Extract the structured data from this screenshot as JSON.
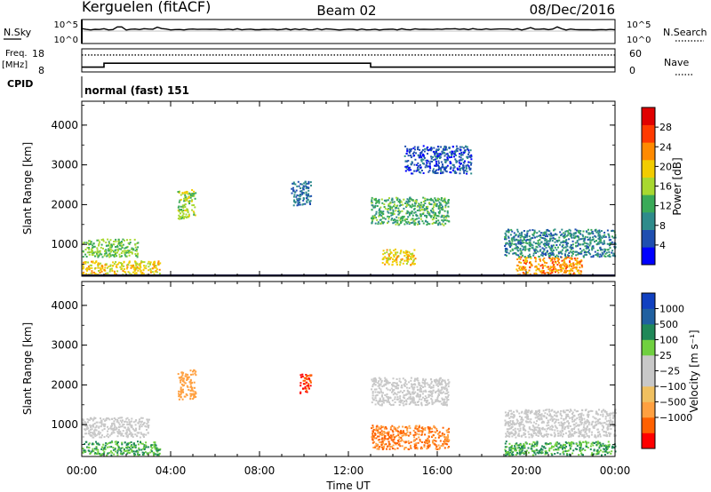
{
  "header": {
    "station": "Kerguelen (fitACF)",
    "beam": "Beam 02",
    "date": "08/Dec/2016"
  },
  "noise_panel": {
    "left_label": "N.Sky",
    "right_label": "N.Search",
    "left_ticks": [
      "10^5",
      "10^0"
    ],
    "right_ticks": [
      "10^5",
      "10^0"
    ]
  },
  "freq_panel": {
    "left_label_line1": "Freq.",
    "left_label_line2": "[MHz]",
    "right_label": "Nave",
    "left_ticks": [
      "18",
      "8"
    ],
    "right_ticks": [
      "60",
      "0"
    ],
    "freq_steps": [
      {
        "t": 0,
        "mhz": 10
      },
      {
        "t": 1.0,
        "mhz": 12
      },
      {
        "t": 13.0,
        "mhz": 10
      }
    ],
    "nave_level": 44
  },
  "cpid": {
    "label": "CPID",
    "mode": "normal (fast) 151"
  },
  "colors": {
    "power": [
      "#0000ff",
      "#1f4fb0",
      "#2e8b8b",
      "#3aaa58",
      "#a8d830",
      "#f2cc00",
      "#ff8a00",
      "#ff3a00",
      "#e00000"
    ],
    "velocity": [
      "#ff0000",
      "#ff6000",
      "#ffa040",
      "#f0c060",
      "#c8c8c8",
      "#c8c8c8",
      "#70d040",
      "#208858",
      "#2060a0",
      "#1040c0"
    ]
  },
  "chart_data": [
    {
      "type": "heatmap",
      "panel": "power",
      "ylabel": "Slant Range [km]",
      "y_ticks": [
        "1000",
        "2000",
        "3000",
        "4000"
      ],
      "ylim": [
        200,
        4600
      ],
      "xlim": [
        0,
        24
      ],
      "colorbar_label": "Power [dB]",
      "colorbar_ticks": [
        "4",
        "8",
        "12",
        "16",
        "20",
        "24",
        "28"
      ],
      "clim": [
        0,
        32
      ],
      "echo_regions": [
        {
          "t0": 0.0,
          "t1": 2.5,
          "r0": 700,
          "r1": 1150,
          "value": 16
        },
        {
          "t0": 0.0,
          "t1": 3.5,
          "r0": 250,
          "r1": 600,
          "value": 22
        },
        {
          "t0": 4.3,
          "t1": 5.1,
          "r0": 1650,
          "r1": 2400,
          "value": 18
        },
        {
          "t0": 9.4,
          "t1": 10.3,
          "r0": 2000,
          "r1": 2600,
          "value": 8
        },
        {
          "t0": 13.0,
          "t1": 16.5,
          "r0": 1500,
          "r1": 2200,
          "value": 14
        },
        {
          "t0": 13.5,
          "t1": 15.0,
          "r0": 500,
          "r1": 900,
          "value": 22
        },
        {
          "t0": 14.5,
          "t1": 17.5,
          "r0": 2800,
          "r1": 3500,
          "value": 6
        },
        {
          "t0": 19.5,
          "t1": 22.5,
          "r0": 250,
          "r1": 700,
          "value": 26
        },
        {
          "t0": 19.0,
          "t1": 24.0,
          "r0": 700,
          "r1": 1400,
          "value": 10
        }
      ]
    },
    {
      "type": "heatmap",
      "panel": "velocity",
      "ylabel": "Slant Range [km]",
      "y_ticks": [
        "1000",
        "2000",
        "3000",
        "4000"
      ],
      "ylim": [
        200,
        4600
      ],
      "xlim": [
        0,
        24
      ],
      "x_ticks": [
        "00:00",
        "04:00",
        "08:00",
        "12:00",
        "16:00",
        "20:00",
        "00:00"
      ],
      "xlabel": "Time UT",
      "colorbar_label": "Velocity [m s⁻¹]",
      "colorbar_ticks": [
        "1000",
        "500",
        "100",
        "25",
        "−25",
        "−100",
        "−500",
        "−1000"
      ],
      "echo_regions": [
        {
          "t0": 0.0,
          "t1": 3.5,
          "r0": 250,
          "r1": 600,
          "value": 100
        },
        {
          "t0": 0.0,
          "t1": 3.0,
          "r0": 700,
          "r1": 1200,
          "value": 0
        },
        {
          "t0": 4.3,
          "t1": 5.1,
          "r0": 1650,
          "r1": 2400,
          "value": -300
        },
        {
          "t0": 9.8,
          "t1": 10.3,
          "r0": 1800,
          "r1": 2300,
          "value": -1000
        },
        {
          "t0": 13.0,
          "t1": 16.5,
          "r0": 1500,
          "r1": 2200,
          "value": 0
        },
        {
          "t0": 13.0,
          "t1": 16.5,
          "r0": 400,
          "r1": 1000,
          "value": -500
        },
        {
          "t0": 19.0,
          "t1": 24.0,
          "r0": 700,
          "r1": 1400,
          "value": 0
        },
        {
          "t0": 19.0,
          "t1": 24.0,
          "r0": 250,
          "r1": 600,
          "value": 100
        }
      ]
    }
  ]
}
